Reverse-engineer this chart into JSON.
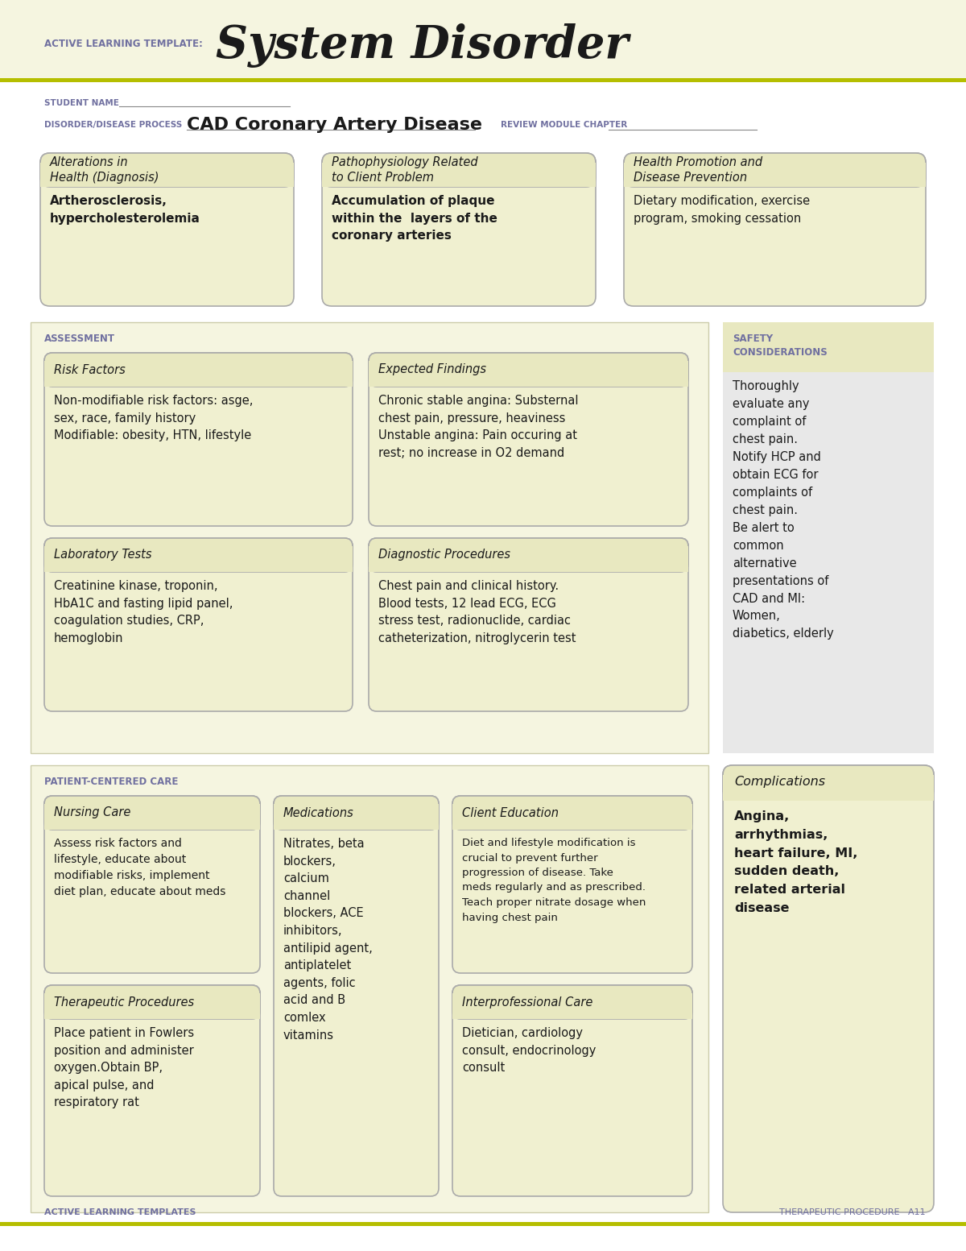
{
  "white": "#ffffff",
  "light_yellow": "#f0f0d0",
  "header_bg": "#e8e8c0",
  "olive_line": "#b5be00",
  "purple_text": "#7070a0",
  "dark_text": "#1a1a1a",
  "gray_bg": "#e8e8e8",
  "page_bg": "#f5f5e0",
  "safety_header_bg": "#e8e8c0",
  "header_label": "ACTIVE LEARNING TEMPLATE:",
  "header_title": "System Disorder",
  "footer_left": "ACTIVE LEARNING TEMPLATES",
  "footer_right": "THERAPEUTIC PROCEDURE   A11",
  "student_name_label": "STUDENT NAME",
  "disorder_label": "DISORDER/DISEASE PROCESS",
  "disorder_value": "CAD Coronary Artery Disease",
  "review_label": "REVIEW MODULE CHAPTER",
  "box1_title": "Alterations in\nHealth (Diagnosis)",
  "box1_body": "Artherosclerosis,\nhypercholesterolemia",
  "box2_title": "Pathophysiology Related\nto Client Problem",
  "box2_body": "Accumulation of plaque\nwithin the  layers of the\ncoronary arteries",
  "box3_title": "Health Promotion and\nDisease Prevention",
  "box3_body": "Dietary modification, exercise\nprogram, smoking cessation",
  "assessment_label": "ASSESSMENT",
  "safety_label": "SAFETY\nCONSIDERATIONS",
  "risk_title": "Risk Factors",
  "risk_body": "Non-modifiable risk factors: asge,\nsex, race, family history\nModifiable: obesity, HTN, lifestyle",
  "expected_title": "Expected Findings",
  "expected_body": "Chronic stable angina: Substernal\nchest pain, pressure, heaviness\nUnstable angina: Pain occuring at\nrest; no increase in O2 demand",
  "lab_title": "Laboratory Tests",
  "lab_body": "Creatinine kinase, troponin,\nHbA1C and fasting lipid panel,\ncoagulation studies, CRP,\nhemoglobin",
  "diag_title": "Diagnostic Procedures",
  "diag_body": "Chest pain and clinical history.\nBlood tests, 12 lead ECG, ECG\nstress test, radionuclide, cardiac\ncatheterization, nitroglycerin test",
  "safety_body": "Thoroughly\nevaluate any\ncomplaint of\nchest pain.\nNotify HCP and\nobtain ECG for\ncomplaints of\nchest pain.\nBe alert to\ncommon\nalternative\npresentations of\nCAD and MI:\nWomen,\ndiabetics, elderly",
  "patient_care_label": "PATIENT-CENTERED CARE",
  "complications_title": "Complications",
  "complications_body": "Angina,\narrhythmias,\nheart failure, MI,\nsudden death,\nrelated arterial\ndisease",
  "nursing_title": "Nursing Care",
  "nursing_body": "Assess risk factors and\nlifestyle, educate about\nmodifiable risks, implement\ndiet plan, educate about meds",
  "meds_title": "Medications",
  "meds_body": "Nitrates, beta\nblockers,\ncalcium\nchannel\nblockers, ACE\ninhibitors,\nantilipid agent,\nantiplatelet\nagents, folic\nacid and B\ncomlex\nvitamins",
  "client_title": "Client Education",
  "client_body": "Diet and lifestyle modification is\ncrucial to prevent further\nprogression of disease. Take\nmeds regularly and as prescribed.\nTeach proper nitrate dosage when\nhaving chest pain",
  "therapeutic_title": "Therapeutic Procedures",
  "therapeutic_body": "Place patient in Fowlers\nposition and administer\noxygen.Obtain BP,\napical pulse, and\nrespiratory rat",
  "interpro_title": "Interprofessional Care",
  "interpro_body": "Dietician, cardiology\nconsult, endocrinology\nconsult"
}
